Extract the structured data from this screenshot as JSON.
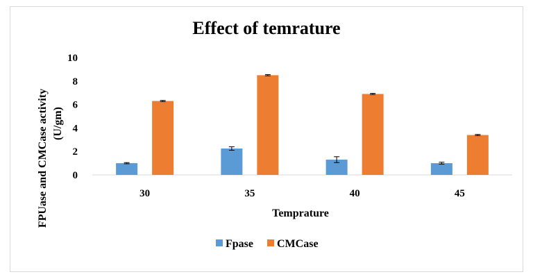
{
  "chart_data": {
    "type": "bar",
    "title": "Effect of temrature",
    "xlabel": "Temprature",
    "ylabel_line1": "FPUase and CMCase activity",
    "ylabel_line2": "(U/gm)",
    "categories": [
      "30",
      "35",
      "40",
      "45"
    ],
    "ylim": [
      0,
      10
    ],
    "yticks": [
      "0",
      "2",
      "4",
      "6",
      "8",
      "10"
    ],
    "grid": false,
    "legend_position": "bottom",
    "series": [
      {
        "name": "Fpase",
        "color": "#5b9bd5",
        "values": [
          1.0,
          2.25,
          1.3,
          1.0
        ],
        "errors": [
          0.05,
          0.15,
          0.25,
          0.08
        ]
      },
      {
        "name": "CMCase",
        "color": "#ed7d31",
        "values": [
          6.3,
          8.5,
          6.9,
          3.4
        ],
        "errors": [
          0.05,
          0.05,
          0.05,
          0.05
        ]
      }
    ]
  }
}
